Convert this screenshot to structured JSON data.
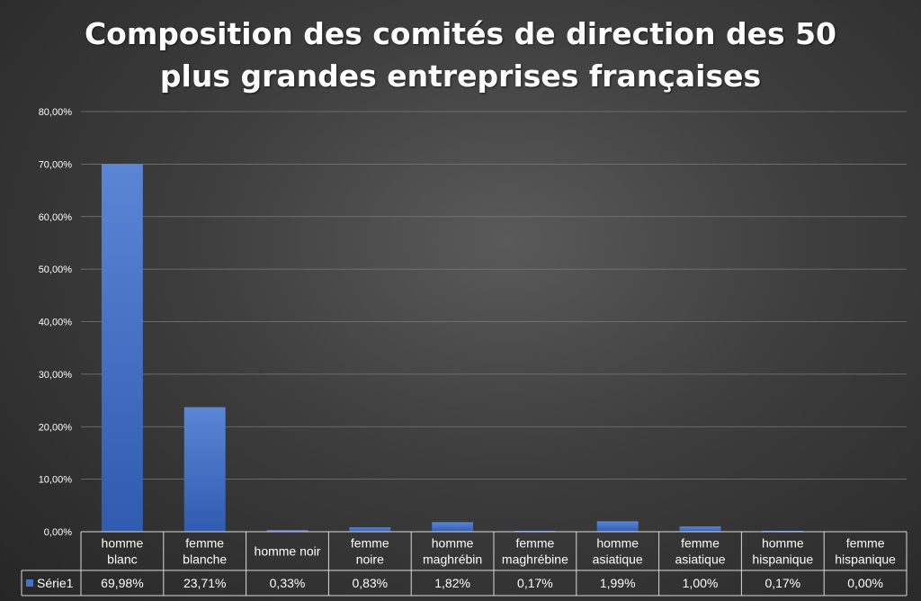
{
  "chart_data": {
    "type": "bar",
    "title_lines": [
      "Composition des comités de direction des 50",
      "plus grandes entreprises françaises"
    ],
    "categories": [
      [
        "homme",
        "blanc"
      ],
      [
        "femme",
        "blanche"
      ],
      [
        "homme noir"
      ],
      [
        "femme",
        "noire"
      ],
      [
        "homme",
        "maghrébin"
      ],
      [
        "femme",
        "maghrébine"
      ],
      [
        "homme",
        "asiatique"
      ],
      [
        "femme",
        "asiatique"
      ],
      [
        "homme",
        "hispanique"
      ],
      [
        "femme",
        "hispanique"
      ]
    ],
    "series": [
      {
        "name": "Série1",
        "values": [
          69.98,
          23.71,
          0.33,
          0.83,
          1.82,
          0.17,
          1.99,
          1.0,
          0.17,
          0.0
        ],
        "table_labels": [
          "69,98%",
          "23,71%",
          "0,33%",
          "0,83%",
          "1,82%",
          "0,17%",
          "1,99%",
          "1,00%",
          "0,17%",
          "0,00%"
        ]
      }
    ],
    "ylim": [
      0,
      80
    ],
    "y_ticks": [
      "0,00%",
      "10,00%",
      "20,00%",
      "30,00%",
      "40,00%",
      "50,00%",
      "60,00%",
      "70,00%",
      "80,00%"
    ],
    "grid": true,
    "legend": "data-table",
    "bar_color": "#4472c4"
  }
}
